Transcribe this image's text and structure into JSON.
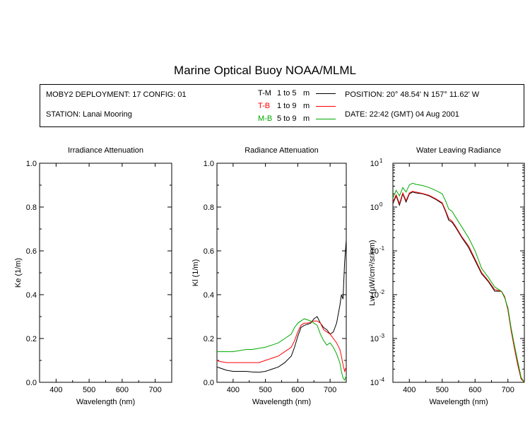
{
  "title": "Marine Optical Buoy NOAA/MLML",
  "info": {
    "deployment": "MOBY2 DEPLOYMENT: 17 CONFIG: 01",
    "station": "STATION: Lanai Mooring",
    "position": "POSITION: 20° 48.54' N   157° 11.62' W",
    "date": "DATE: 22:42 (GMT) 04 Aug 2001"
  },
  "legend": [
    {
      "name": "T-M",
      "range": "1 to 5",
      "unit": "m",
      "color": "#000000"
    },
    {
      "name": "T-B",
      "range": "1 to 9",
      "unit": "m",
      "color": "#ff0000"
    },
    {
      "name": "M-B",
      "range": "5 to 9",
      "unit": "m",
      "color": "#00aa00"
    }
  ],
  "chart_data": [
    {
      "type": "line",
      "title": "Irradiance Attenuation",
      "xlabel": "Wavelength (nm)",
      "ylabel": "Ke  (1/m)",
      "xlim": [
        350,
        750
      ],
      "ylim": [
        0,
        1
      ],
      "xticks": [
        "400",
        "500",
        "600",
        "700"
      ],
      "yticks": [
        "0.0",
        "0.2",
        "0.4",
        "0.6",
        "0.8",
        "1.0"
      ],
      "series": []
    },
    {
      "type": "line",
      "title": "Radiance Attenuation",
      "xlabel": "Wavelength (nm)",
      "ylabel": "Kl  (1/m)",
      "xlim": [
        350,
        750
      ],
      "ylim": [
        0,
        1
      ],
      "xticks": [
        "400",
        "500",
        "600",
        "700"
      ],
      "yticks": [
        "0.0",
        "0.2",
        "0.4",
        "0.6",
        "0.8",
        "1.0"
      ],
      "series": [
        {
          "name": "T-M",
          "color": "#000000",
          "x": [
            350,
            360,
            380,
            400,
            420,
            440,
            460,
            480,
            500,
            520,
            540,
            560,
            580,
            590,
            600,
            610,
            620,
            630,
            640,
            650,
            660,
            670,
            680,
            690,
            700,
            710,
            720,
            730,
            735,
            740,
            745,
            750
          ],
          "y": [
            0.07,
            0.065,
            0.055,
            0.05,
            0.05,
            0.05,
            0.047,
            0.046,
            0.05,
            0.06,
            0.07,
            0.09,
            0.12,
            0.16,
            0.21,
            0.25,
            0.26,
            0.265,
            0.27,
            0.29,
            0.3,
            0.27,
            0.25,
            0.24,
            0.22,
            0.23,
            0.27,
            0.35,
            0.4,
            0.38,
            0.55,
            0.65
          ]
        },
        {
          "name": "T-B",
          "color": "#ff0000",
          "x": [
            350,
            360,
            380,
            400,
            420,
            440,
            460,
            480,
            500,
            520,
            540,
            560,
            580,
            590,
            600,
            610,
            620,
            630,
            640,
            650,
            660,
            670,
            680,
            690,
            700,
            710,
            720,
            730,
            735,
            740,
            745,
            750
          ],
          "y": [
            0.1,
            0.095,
            0.09,
            0.09,
            0.09,
            0.09,
            0.09,
            0.09,
            0.1,
            0.11,
            0.12,
            0.14,
            0.16,
            0.19,
            0.23,
            0.26,
            0.27,
            0.27,
            0.275,
            0.28,
            0.28,
            0.27,
            0.24,
            0.23,
            0.22,
            0.2,
            0.18,
            0.15,
            0.12,
            0.08,
            0.05,
            0.07
          ]
        },
        {
          "name": "M-B",
          "color": "#00aa00",
          "x": [
            350,
            360,
            380,
            400,
            420,
            440,
            460,
            480,
            500,
            520,
            540,
            560,
            580,
            590,
            600,
            610,
            620,
            630,
            640,
            650,
            660,
            670,
            680,
            690,
            700,
            710,
            720,
            730,
            735,
            740,
            745,
            750
          ],
          "y": [
            0.14,
            0.14,
            0.14,
            0.14,
            0.145,
            0.15,
            0.15,
            0.155,
            0.16,
            0.17,
            0.18,
            0.2,
            0.22,
            0.25,
            0.27,
            0.28,
            0.29,
            0.285,
            0.28,
            0.27,
            0.26,
            0.22,
            0.19,
            0.17,
            0.18,
            0.16,
            0.13,
            0.09,
            0.05,
            0.02,
            0.01,
            0.03
          ]
        }
      ]
    },
    {
      "type": "line",
      "title": "Water Leaving Radiance",
      "xlabel": "Wavelength (nm)",
      "ylabel": "Lw  (µW/cm²/sr/nm)",
      "xlim": [
        350,
        750
      ],
      "ylim": [
        0.0001,
        10
      ],
      "yscale": "log",
      "xticks": [
        "400",
        "500",
        "600",
        "700"
      ],
      "yticks": [
        {
          "base": "10",
          "exp": "1"
        },
        {
          "base": "10",
          "exp": "0"
        },
        {
          "base": "10",
          "exp": "-1"
        },
        {
          "base": "10",
          "exp": "-2"
        },
        {
          "base": "10",
          "exp": "-3"
        },
        {
          "base": "10",
          "exp": "-4"
        }
      ],
      "series": [
        {
          "name": "T-M",
          "color": "#000000",
          "x": [
            350,
            360,
            370,
            380,
            390,
            400,
            410,
            420,
            440,
            460,
            480,
            500,
            510,
            520,
            530,
            540,
            560,
            580,
            600,
            620,
            640,
            660,
            680,
            690,
            700,
            710,
            720,
            730,
            740,
            750
          ],
          "y": [
            1.2,
            1.8,
            1.1,
            2.0,
            1.3,
            2.0,
            2.2,
            2.1,
            2.0,
            1.8,
            1.5,
            1.2,
            0.8,
            0.5,
            0.45,
            0.35,
            0.2,
            0.12,
            0.06,
            0.03,
            0.02,
            0.012,
            0.012,
            0.009,
            0.0045,
            0.0015,
            0.0006,
            0.00025,
            0.00012,
            0.0001
          ]
        },
        {
          "name": "T-B",
          "color": "#ff0000",
          "x": [
            350,
            360,
            370,
            380,
            390,
            400,
            410,
            420,
            440,
            460,
            480,
            500,
            510,
            520,
            530,
            540,
            560,
            580,
            600,
            620,
            640,
            660,
            680,
            690,
            700,
            710,
            720,
            730,
            740,
            750
          ],
          "y": [
            1.3,
            1.9,
            1.2,
            2.1,
            1.4,
            2.1,
            2.3,
            2.2,
            2.05,
            1.85,
            1.55,
            1.25,
            0.85,
            0.55,
            0.48,
            0.37,
            0.21,
            0.13,
            0.065,
            0.032,
            0.021,
            0.013,
            0.012,
            0.009,
            0.0045,
            0.0015,
            0.0006,
            0.00025,
            0.00012,
            0.0001
          ]
        },
        {
          "name": "M-B",
          "color": "#00aa00",
          "x": [
            350,
            360,
            370,
            380,
            390,
            400,
            410,
            420,
            440,
            460,
            480,
            500,
            510,
            520,
            530,
            540,
            560,
            580,
            600,
            620,
            640,
            660,
            680,
            690,
            700,
            710,
            720,
            730,
            740,
            750
          ],
          "y": [
            1.6,
            2.4,
            1.8,
            2.8,
            2.2,
            3.2,
            3.5,
            3.3,
            3.1,
            2.8,
            2.4,
            2.0,
            1.4,
            0.9,
            0.8,
            0.6,
            0.35,
            0.2,
            0.1,
            0.04,
            0.025,
            0.015,
            0.012,
            0.0085,
            0.005,
            0.0017,
            0.0007,
            0.0003,
            0.00013,
            0.0001
          ]
        }
      ]
    }
  ]
}
